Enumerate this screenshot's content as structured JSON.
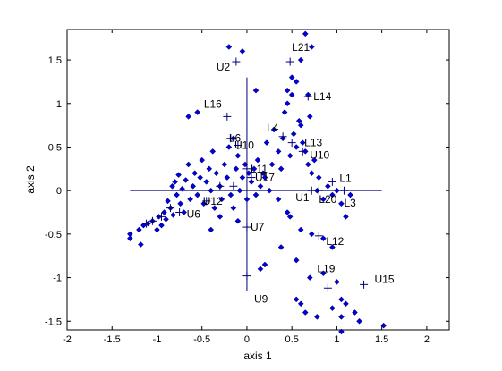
{
  "chart_data": {
    "type": "scatter",
    "xlabel": "axis 1",
    "ylabel": "axis 2",
    "xlim": [
      -2.0,
      2.25
    ],
    "ylim": [
      -1.6,
      1.85
    ],
    "xticks": [
      -2,
      -1.5,
      -1,
      -0.5,
      0,
      0.5,
      1,
      1.5,
      2
    ],
    "yticks": [
      -1.5,
      -1,
      -0.5,
      0,
      0.5,
      1,
      1.5
    ],
    "colors": {
      "points": "#0000dd",
      "lines": "#000080",
      "axes": "#000000"
    },
    "points": [
      [
        -1.3,
        -0.55
      ],
      [
        -1.3,
        -0.5
      ],
      [
        -1.18,
        -0.62
      ],
      [
        -1.2,
        -0.45
      ],
      [
        -1.15,
        -0.4
      ],
      [
        -1.1,
        -0.38
      ],
      [
        -1.05,
        -0.35
      ],
      [
        -1.0,
        -0.45
      ],
      [
        -0.98,
        -0.3
      ],
      [
        -0.95,
        -0.4
      ],
      [
        -0.92,
        -0.25
      ],
      [
        -0.9,
        -0.33
      ],
      [
        -0.88,
        -0.12
      ],
      [
        -0.85,
        -0.2
      ],
      [
        -0.83,
        0.05
      ],
      [
        -0.82,
        -0.28
      ],
      [
        -0.8,
        0.1
      ],
      [
        -0.78,
        -0.05
      ],
      [
        -0.76,
        0.18
      ],
      [
        -0.74,
        -0.15
      ],
      [
        -0.72,
        0.02
      ],
      [
        -0.7,
        -0.25
      ],
      [
        -0.68,
        0.12
      ],
      [
        -0.65,
        0.3
      ],
      [
        -0.63,
        -0.1
      ],
      [
        -0.6,
        0.05
      ],
      [
        -0.58,
        0.2
      ],
      [
        -0.55,
        -0.05
      ],
      [
        -0.52,
        0.15
      ],
      [
        -0.5,
        0.35
      ],
      [
        -0.48,
        -0.15
      ],
      [
        -0.45,
        0.1
      ],
      [
        -0.42,
        0.25
      ],
      [
        -0.4,
        0.0
      ],
      [
        -0.38,
        0.45
      ],
      [
        -0.36,
        -0.2
      ],
      [
        -0.34,
        0.2
      ],
      [
        -0.3,
        0.05
      ],
      [
        -0.28,
        -0.1
      ],
      [
        -0.25,
        0.3
      ],
      [
        -0.22,
        0.15
      ],
      [
        -0.2,
        0.5
      ],
      [
        -0.18,
        -0.05
      ],
      [
        -0.15,
        0.6
      ],
      [
        -0.12,
        0.25
      ],
      [
        -0.1,
        0.4
      ],
      [
        -0.08,
        0.0
      ],
      [
        -0.05,
        0.15
      ],
      [
        -0.02,
        0.3
      ],
      [
        0.0,
        -0.1
      ],
      [
        0.02,
        0.2
      ],
      [
        0.05,
        0.1
      ],
      [
        0.08,
        0.25
      ],
      [
        0.1,
        -0.05
      ],
      [
        0.12,
        0.35
      ],
      [
        0.15,
        0.05
      ],
      [
        0.18,
        0.2
      ],
      [
        0.2,
        0.15
      ],
      [
        0.22,
        0.55
      ],
      [
        0.25,
        0.0
      ],
      [
        0.28,
        0.3
      ],
      [
        0.3,
        0.7
      ],
      [
        0.35,
        0.45
      ],
      [
        0.38,
        0.25
      ],
      [
        0.4,
        0.6
      ],
      [
        0.42,
        0.9
      ],
      [
        0.45,
        1.0
      ],
      [
        0.48,
        0.4
      ],
      [
        0.5,
        1.1
      ],
      [
        0.52,
        0.65
      ],
      [
        0.55,
        0.5
      ],
      [
        0.58,
        0.8
      ],
      [
        0.6,
        0.75
      ],
      [
        0.62,
        0.55
      ],
      [
        0.65,
        0.45
      ],
      [
        0.68,
        0.3
      ],
      [
        0.7,
        0.85
      ],
      [
        0.72,
        0.2
      ],
      [
        0.75,
        0.35
      ],
      [
        0.78,
        0.0
      ],
      [
        0.8,
        0.15
      ],
      [
        0.85,
        -0.1
      ],
      [
        0.9,
        0.05
      ],
      [
        0.95,
        -0.05
      ],
      [
        1.0,
        0.0
      ],
      [
        1.05,
        -0.15
      ],
      [
        1.1,
        -0.3
      ],
      [
        1.15,
        -0.05
      ],
      [
        -0.65,
        0.85
      ],
      [
        -0.55,
        0.9
      ],
      [
        -0.2,
        1.65
      ],
      [
        -0.05,
        1.6
      ],
      [
        0.5,
        1.3
      ],
      [
        0.6,
        1.5
      ],
      [
        0.65,
        1.8
      ],
      [
        0.45,
        1.15
      ],
      [
        0.55,
        1.25
      ],
      [
        0.68,
        1.1
      ],
      [
        0.72,
        1.65
      ],
      [
        0.1,
        1.15
      ],
      [
        0.48,
        -0.3
      ],
      [
        0.6,
        -0.45
      ],
      [
        0.72,
        -0.5
      ],
      [
        0.85,
        -0.55
      ],
      [
        0.95,
        -0.65
      ],
      [
        0.55,
        -0.8
      ],
      [
        0.2,
        -0.85
      ],
      [
        0.15,
        -0.9
      ],
      [
        0.38,
        -0.65
      ],
      [
        0.45,
        -0.25
      ],
      [
        0.35,
        -0.1
      ],
      [
        -0.15,
        -0.2
      ],
      [
        -0.1,
        -0.35
      ],
      [
        -0.3,
        -0.3
      ],
      [
        -0.4,
        -0.45
      ],
      [
        0.7,
        -1.0
      ],
      [
        0.85,
        -0.95
      ],
      [
        1.0,
        -1.05
      ],
      [
        1.05,
        -1.25
      ],
      [
        1.1,
        -1.3
      ],
      [
        0.6,
        -1.3
      ],
      [
        0.55,
        -1.25
      ],
      [
        0.65,
        -1.4
      ],
      [
        0.95,
        -1.35
      ],
      [
        1.05,
        -1.45
      ],
      [
        1.2,
        -1.4
      ],
      [
        1.25,
        -1.5
      ],
      [
        1.52,
        -1.55
      ],
      [
        1.05,
        -1.62
      ],
      [
        0.78,
        -1.45
      ]
    ],
    "lines": [
      {
        "from": [
          -1.3,
          0.0
        ],
        "to": [
          1.5,
          0.0
        ]
      },
      {
        "from": [
          0.0,
          1.3
        ],
        "to": [
          0.0,
          -1.15
        ]
      }
    ],
    "annotations": [
      {
        "label": "U2",
        "x": -0.12,
        "y": 1.48,
        "dx": -22,
        "dy": 10
      },
      {
        "label": "L21",
        "x": 0.48,
        "y": 1.48,
        "dx": 2,
        "dy": -12
      },
      {
        "label": "L14",
        "x": 0.68,
        "y": 1.08,
        "dx": 6,
        "dy": 4
      },
      {
        "label": "L16",
        "x": -0.22,
        "y": 0.85,
        "dx": -26,
        "dy": -10
      },
      {
        "label": "L4",
        "x": 0.4,
        "y": 0.62,
        "dx": -18,
        "dy": -6
      },
      {
        "label": "L6",
        "x": -0.18,
        "y": 0.6,
        "dx": -2,
        "dy": 4
      },
      {
        "label": "L13",
        "x": 0.5,
        "y": 0.55,
        "dx": 14,
        "dy": 4
      },
      {
        "label": "U10",
        "x": 0.0,
        "y": 0.52,
        "dx": -14,
        "dy": 4
      },
      {
        "label": "U10",
        "x": 0.62,
        "y": 0.45,
        "dx": 8,
        "dy": 8
      },
      {
        "label": "L11",
        "x": 0.0,
        "y": 0.25,
        "dx": 4,
        "dy": 4
      },
      {
        "label": "U17",
        "x": 0.05,
        "y": 0.15,
        "dx": 4,
        "dy": 4
      },
      {
        "label": "L1",
        "x": 0.95,
        "y": 0.1,
        "dx": 8,
        "dy": 0
      },
      {
        "label": "U12",
        "x": -0.45,
        "y": -0.12,
        "dx": -4,
        "dy": 4
      },
      {
        "label": "U1",
        "x": 0.72,
        "y": 0.0,
        "dx": -18,
        "dy": 12
      },
      {
        "label": "L20",
        "x": 0.8,
        "y": 0.0,
        "dx": 0,
        "dy": 14
      },
      {
        "label": "L3",
        "x": 1.08,
        "y": 0.0,
        "dx": 0,
        "dy": 18
      },
      {
        "label": "U6",
        "x": -0.75,
        "y": -0.25,
        "dx": 8,
        "dy": 6
      },
      {
        "label": "U7",
        "x": 0.0,
        "y": -0.42,
        "dx": 4,
        "dy": 4
      },
      {
        "label": "L12",
        "x": 0.8,
        "y": -0.52,
        "dx": 8,
        "dy": 10
      },
      {
        "label": "L19",
        "x": 0.9,
        "y": -1.12,
        "dx": -12,
        "dy": -18
      },
      {
        "label": "U15",
        "x": 1.3,
        "y": -1.08,
        "dx": 12,
        "dy": -2
      },
      {
        "label": "U9",
        "x": 0.0,
        "y": -0.98,
        "dx": 8,
        "dy": 30
      }
    ],
    "crosses": [
      [
        -0.12,
        1.48
      ],
      [
        0.48,
        1.48
      ],
      [
        0.68,
        1.08
      ],
      [
        -0.22,
        0.85
      ],
      [
        0.4,
        0.62
      ],
      [
        -0.18,
        0.6
      ],
      [
        0.5,
        0.55
      ],
      [
        -0.1,
        0.52
      ],
      [
        0.62,
        0.45
      ],
      [
        0.0,
        0.25
      ],
      [
        0.05,
        0.15
      ],
      [
        -0.15,
        0.05
      ],
      [
        -0.3,
        0.05
      ],
      [
        0.95,
        0.1
      ],
      [
        -0.45,
        -0.12
      ],
      [
        0.72,
        0.0
      ],
      [
        0.8,
        0.0
      ],
      [
        1.08,
        0.0
      ],
      [
        -0.75,
        -0.25
      ],
      [
        -0.85,
        -0.2
      ],
      [
        -0.95,
        -0.3
      ],
      [
        -1.05,
        -0.35
      ],
      [
        -1.12,
        -0.38
      ],
      [
        0.0,
        -0.42
      ],
      [
        0.8,
        -0.52
      ],
      [
        0.9,
        -1.12
      ],
      [
        1.3,
        -1.08
      ],
      [
        0.0,
        -0.98
      ]
    ]
  }
}
